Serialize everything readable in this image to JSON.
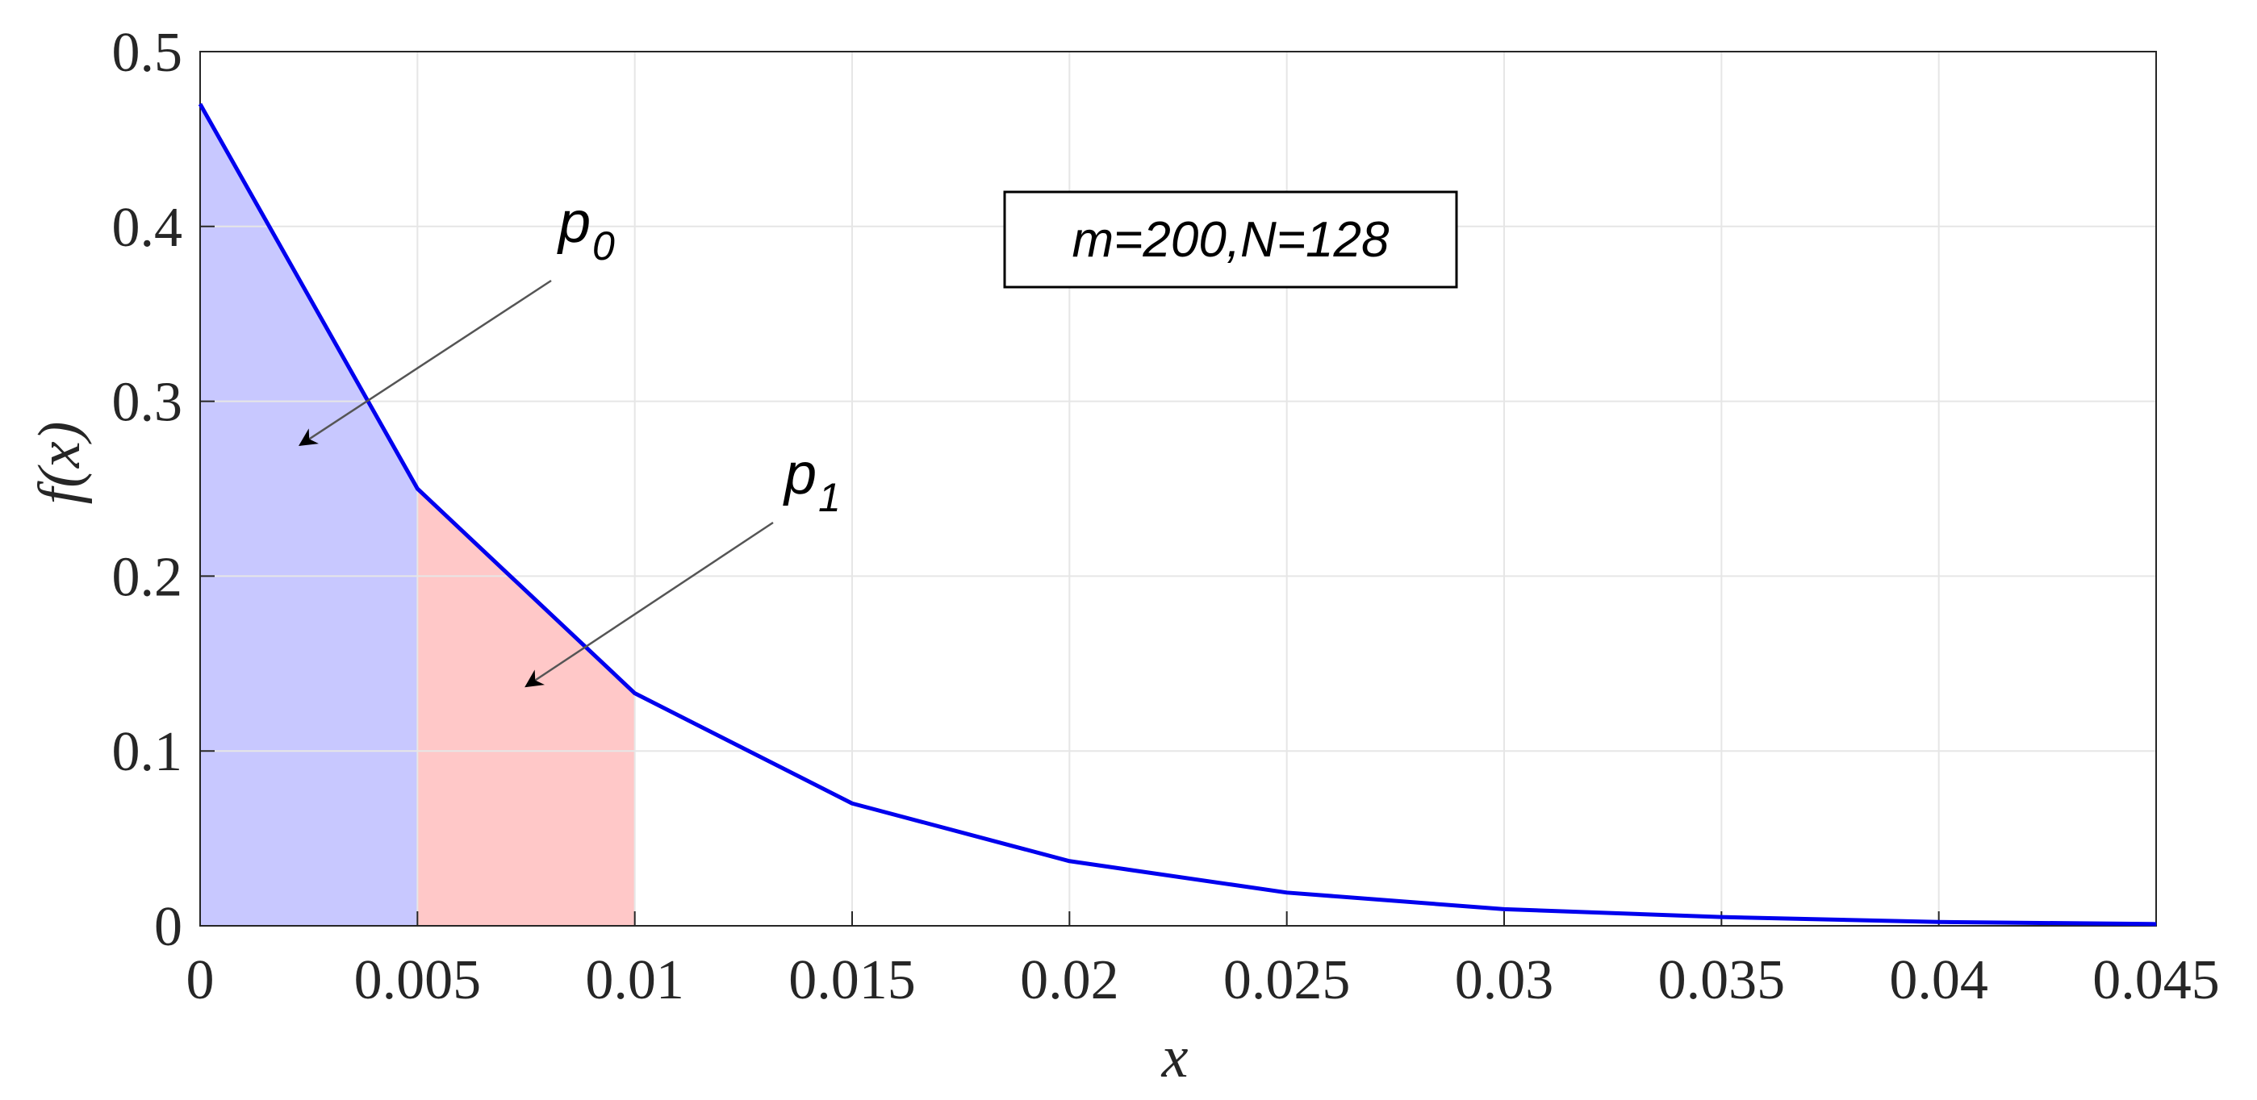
{
  "chart_data": {
    "type": "line",
    "xlabel": "x",
    "ylabel": "f(x)",
    "xlim": [
      0,
      0.045
    ],
    "ylim": [
      0,
      0.5
    ],
    "grid": true,
    "x_ticks": [
      "0",
      "0.005",
      "0.01",
      "0.015",
      "0.02",
      "0.025",
      "0.03",
      "0.035",
      "0.04",
      "0.045"
    ],
    "y_ticks": [
      "0",
      "0.1",
      "0.2",
      "0.3",
      "0.4",
      "0.5"
    ],
    "series": [
      {
        "x": [
          0,
          0.005,
          0.01,
          0.015,
          0.02,
          0.025,
          0.03,
          0.035,
          0.04,
          0.045
        ],
        "y": [
          0.47,
          0.25,
          0.133,
          0.07,
          0.037,
          0.019,
          0.0095,
          0.005,
          0.0022,
          0.001
        ],
        "color": "#0000ee"
      }
    ],
    "shaded_regions": [
      {
        "x_from": 0,
        "x_to": 0.005,
        "color": "#c8c8ff"
      },
      {
        "x_from": 0.005,
        "x_to": 0.01,
        "color": "#ffc8c8"
      }
    ],
    "annotations": [
      {
        "main": "p",
        "sub": "0",
        "arrow_to": [
          0.0023,
          0.275
        ]
      },
      {
        "main": "p",
        "sub": "1",
        "arrow_to": [
          0.0075,
          0.137
        ]
      }
    ],
    "textbox": "m=200,N=128"
  },
  "colors": {
    "line": "#0000ee",
    "region_p0": "#c8c8ff",
    "region_p1": "#ffc8c8",
    "grid": "#e6e6e6",
    "axis": "#262626"
  }
}
